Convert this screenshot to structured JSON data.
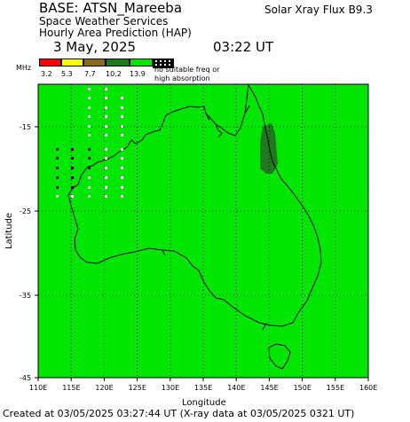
{
  "header": {
    "base": "BASE: ATSN_Mareeba",
    "service": "Space Weather Services",
    "product": "Hourly Area Prediction (HAP)",
    "date": "3 May, 2025",
    "time": "03:22 UT",
    "flux": "Solar Xray Flux B9.3"
  },
  "legend": {
    "unit": "MHz",
    "values": [
      "3.2",
      "5.3",
      "7.7",
      "10.2",
      "13.9"
    ],
    "colors": [
      "#ff0000",
      "#ffff00",
      "#8b6b1b",
      "#1f7a1f",
      "#00e600"
    ],
    "note_line1": "no suitable freq or",
    "note_line2": "high absorption"
  },
  "map": {
    "ylabel": "Latitude",
    "xlabel": "Longitude",
    "lat_ticks": [
      "-15",
      "-25",
      "-35",
      "-45"
    ],
    "lon_ticks": [
      "110E",
      "115E",
      "120E",
      "125E",
      "130E",
      "135E",
      "140E",
      "145E",
      "150E",
      "155E",
      "160E"
    ],
    "background_color": "#00e600",
    "absorption_color": "#1f7a1f",
    "grid_color": "#000000"
  },
  "footer": {
    "created": "Created at 03/05/2025 03:27:44 UT (X-ray data at 03/05/2025 0321 UT)"
  }
}
